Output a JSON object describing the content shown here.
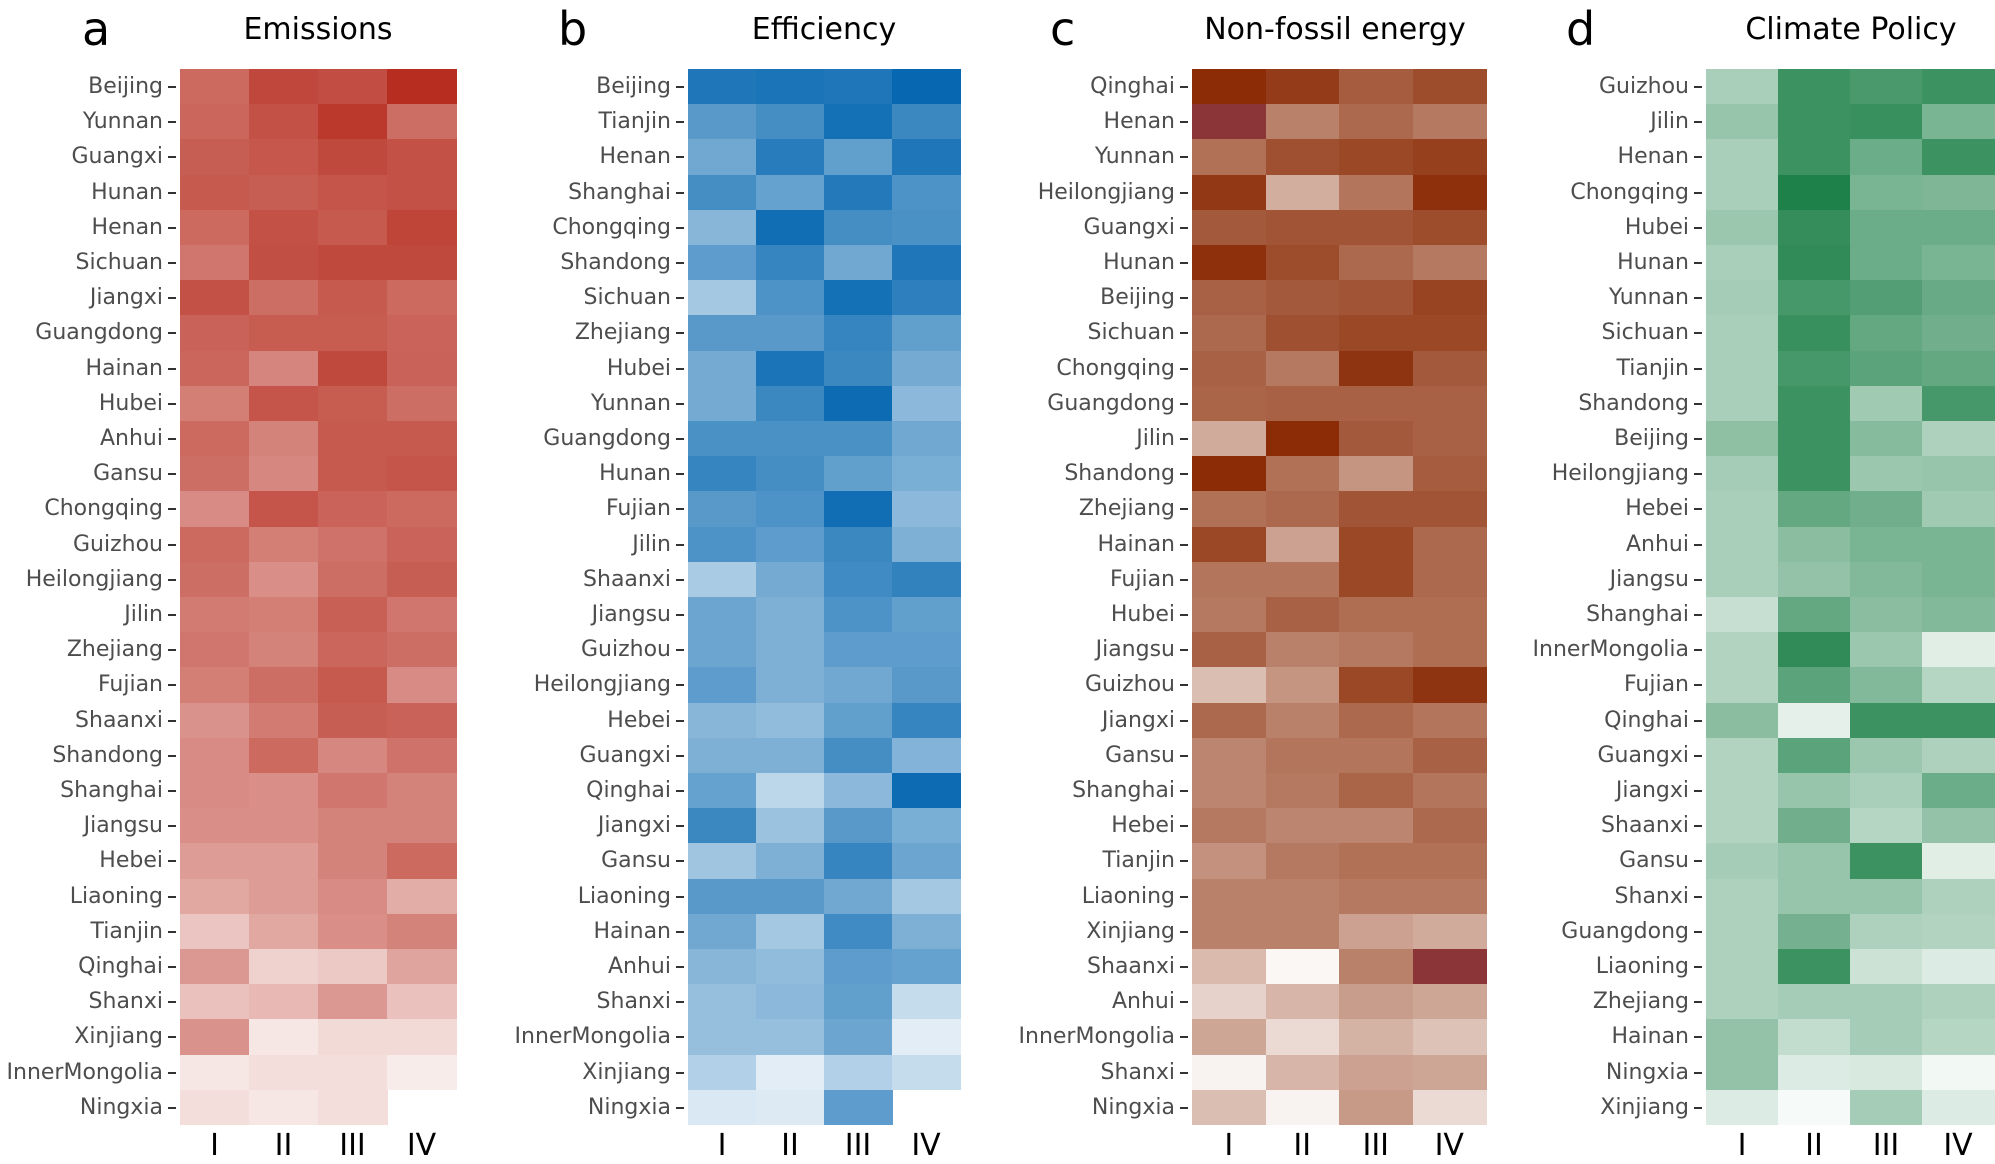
{
  "chart_data": [
    {
      "type": "heatmap",
      "letter": "a",
      "title": "Emissions",
      "xlabels": [
        "I",
        "II",
        "III",
        "IV"
      ],
      "color_low": "#ffffff",
      "color_high": "#b5281a",
      "rows": [
        "Beijing",
        "Yunnan",
        "Guangxi",
        "Hunan",
        "Henan",
        "Sichuan",
        "Jiangxi",
        "Guangdong",
        "Hainan",
        "Hubei",
        "Anhui",
        "Gansu",
        "Chongqing",
        "Guizhou",
        "Heilongjiang",
        "Jilin",
        "Zhejiang",
        "Fujian",
        "Shaanxi",
        "Shandong",
        "Shanghai",
        "Jiangsu",
        "Hebei",
        "Liaoning",
        "Tianjin",
        "Qinghai",
        "Shanxi",
        "Xinjiang",
        "InnerMongolia",
        "Ningxia"
      ],
      "values": [
        [
          0.68,
          0.85,
          0.82,
          0.97
        ],
        [
          0.7,
          0.8,
          0.92,
          0.66
        ],
        [
          0.74,
          0.77,
          0.84,
          0.8
        ],
        [
          0.76,
          0.74,
          0.78,
          0.8
        ],
        [
          0.68,
          0.8,
          0.76,
          0.86
        ],
        [
          0.62,
          0.81,
          0.84,
          0.84
        ],
        [
          0.8,
          0.66,
          0.76,
          0.68
        ],
        [
          0.72,
          0.75,
          0.75,
          0.71
        ],
        [
          0.7,
          0.55,
          0.84,
          0.72
        ],
        [
          0.58,
          0.78,
          0.75,
          0.66
        ],
        [
          0.68,
          0.56,
          0.76,
          0.76
        ],
        [
          0.66,
          0.54,
          0.76,
          0.78
        ],
        [
          0.52,
          0.78,
          0.71,
          0.68
        ],
        [
          0.68,
          0.58,
          0.64,
          0.71
        ],
        [
          0.66,
          0.5,
          0.66,
          0.74
        ],
        [
          0.6,
          0.58,
          0.73,
          0.62
        ],
        [
          0.62,
          0.56,
          0.7,
          0.66
        ],
        [
          0.58,
          0.66,
          0.76,
          0.52
        ],
        [
          0.48,
          0.6,
          0.74,
          0.72
        ],
        [
          0.52,
          0.68,
          0.54,
          0.64
        ],
        [
          0.52,
          0.5,
          0.62,
          0.56
        ],
        [
          0.5,
          0.5,
          0.56,
          0.56
        ],
        [
          0.44,
          0.44,
          0.56,
          0.68
        ],
        [
          0.38,
          0.44,
          0.52,
          0.36
        ],
        [
          0.24,
          0.38,
          0.5,
          0.56
        ],
        [
          0.46,
          0.18,
          0.22,
          0.4
        ],
        [
          0.26,
          0.3,
          0.46,
          0.26
        ],
        [
          0.48,
          0.08,
          0.14,
          0.14
        ],
        [
          0.08,
          0.12,
          0.12,
          0.05
        ],
        [
          0.12,
          0.08,
          0.12,
          null
        ]
      ]
    },
    {
      "type": "heatmap",
      "letter": "b",
      "title": "Efficiency",
      "xlabels": [
        "I",
        "II",
        "III",
        "IV"
      ],
      "color_low": "#ffffff",
      "color_high": "#0768b1",
      "rows": [
        "Beijing",
        "Tianjin",
        "Henan",
        "Shanghai",
        "Chongqing",
        "Shandong",
        "Sichuan",
        "Zhejiang",
        "Hubei",
        "Yunnan",
        "Guangdong",
        "Hunan",
        "Fujian",
        "Jilin",
        "Shaanxi",
        "Jiangsu",
        "Guizhou",
        "Heilongjiang",
        "Hebei",
        "Guangxi",
        "Qinghai",
        "Jiangxi",
        "Gansu",
        "Liaoning",
        "Hainan",
        "Anhui",
        "Shanxi",
        "InnerMongolia",
        "Xinjiang",
        "Ningxia"
      ],
      "values": [
        [
          0.9,
          0.92,
          0.9,
          1.0
        ],
        [
          0.66,
          0.74,
          0.94,
          0.78
        ],
        [
          0.56,
          0.86,
          0.62,
          0.9
        ],
        [
          0.74,
          0.6,
          0.88,
          0.7
        ],
        [
          0.46,
          0.96,
          0.74,
          0.72
        ],
        [
          0.64,
          0.8,
          0.56,
          0.9
        ],
        [
          0.34,
          0.7,
          0.94,
          0.84
        ],
        [
          0.66,
          0.66,
          0.8,
          0.62
        ],
        [
          0.54,
          0.92,
          0.78,
          0.54
        ],
        [
          0.54,
          0.78,
          0.98,
          0.44
        ],
        [
          0.72,
          0.72,
          0.72,
          0.56
        ],
        [
          0.8,
          0.74,
          0.62,
          0.52
        ],
        [
          0.66,
          0.7,
          0.96,
          0.44
        ],
        [
          0.7,
          0.64,
          0.78,
          0.5
        ],
        [
          0.32,
          0.54,
          0.76,
          0.82
        ],
        [
          0.58,
          0.5,
          0.7,
          0.62
        ],
        [
          0.58,
          0.5,
          0.64,
          0.64
        ],
        [
          0.64,
          0.5,
          0.56,
          0.66
        ],
        [
          0.46,
          0.42,
          0.62,
          0.8
        ],
        [
          0.5,
          0.5,
          0.74,
          0.48
        ],
        [
          0.6,
          0.24,
          0.44,
          0.98
        ],
        [
          0.78,
          0.38,
          0.66,
          0.52
        ],
        [
          0.36,
          0.5,
          0.8,
          0.58
        ],
        [
          0.66,
          0.66,
          0.56,
          0.34
        ],
        [
          0.56,
          0.34,
          0.76,
          0.5
        ],
        [
          0.46,
          0.42,
          0.64,
          0.6
        ],
        [
          0.4,
          0.44,
          0.62,
          0.2
        ],
        [
          0.4,
          0.4,
          0.58,
          0.08
        ],
        [
          0.28,
          0.08,
          0.28,
          0.2
        ],
        [
          0.12,
          0.1,
          0.64,
          null
        ]
      ]
    },
    {
      "type": "heatmap",
      "letter": "c",
      "title": "Non-fossil energy",
      "xlabels": [
        "I",
        "II",
        "III",
        "IV"
      ],
      "color_low": "#ffffff",
      "color_high": "#8b2c06",
      "color_extreme": "#8b3538",
      "rows": [
        "Qinghai",
        "Henan",
        "Yunnan",
        "Heilongjiang",
        "Guangxi",
        "Hunan",
        "Beijing",
        "Sichuan",
        "Chongqing",
        "Guangdong",
        "Jilin",
        "Shandong",
        "Zhejiang",
        "Hainan",
        "Fujian",
        "Hubei",
        "Jiangsu",
        "Guizhou",
        "Jiangxi",
        "Gansu",
        "Shanghai",
        "Hebei",
        "Tianjin",
        "Liaoning",
        "Xinjiang",
        "Shaanxi",
        "Anhui",
        "InnerMongolia",
        "Shanxi",
        "Ningxia"
      ],
      "values": [
        [
          1.0,
          0.92,
          0.76,
          0.84
        ],
        [
          "extreme",
          0.58,
          0.7,
          0.62
        ],
        [
          0.66,
          0.82,
          0.86,
          0.9
        ],
        [
          0.94,
          0.36,
          0.64,
          0.98
        ],
        [
          0.78,
          0.8,
          0.8,
          0.84
        ],
        [
          0.98,
          0.84,
          0.7,
          0.62
        ],
        [
          0.74,
          0.78,
          0.8,
          0.88
        ],
        [
          0.7,
          0.82,
          0.86,
          0.86
        ],
        [
          0.74,
          0.62,
          0.96,
          0.78
        ],
        [
          0.72,
          0.74,
          0.74,
          0.74
        ],
        [
          0.38,
          1.0,
          0.78,
          0.74
        ],
        [
          1.0,
          0.66,
          0.48,
          0.76
        ],
        [
          0.66,
          0.7,
          0.8,
          0.8
        ],
        [
          0.86,
          0.42,
          0.86,
          0.7
        ],
        [
          0.64,
          0.64,
          0.86,
          0.7
        ],
        [
          0.62,
          0.74,
          0.68,
          0.68
        ],
        [
          0.74,
          0.58,
          0.62,
          0.68
        ],
        [
          0.28,
          0.48,
          0.86,
          0.96
        ],
        [
          0.7,
          0.58,
          0.7,
          0.64
        ],
        [
          0.56,
          0.64,
          0.64,
          0.74
        ],
        [
          0.56,
          0.62,
          0.72,
          0.64
        ],
        [
          0.62,
          0.56,
          0.56,
          0.7
        ],
        [
          0.5,
          0.62,
          0.66,
          0.66
        ],
        [
          0.58,
          0.58,
          0.62,
          0.62
        ],
        [
          0.58,
          0.58,
          0.42,
          0.38
        ],
        [
          0.3,
          0.0,
          0.58,
          "extreme"
        ],
        [
          0.18,
          0.32,
          0.44,
          0.4
        ],
        [
          0.4,
          0.14,
          0.34,
          0.26
        ],
        [
          0.02,
          0.32,
          0.42,
          0.4
        ],
        [
          0.28,
          0.02,
          0.46,
          0.14
        ]
      ]
    },
    {
      "type": "heatmap",
      "letter": "d",
      "title": "Climate Policy",
      "xlabels": [
        "I",
        "II",
        "III",
        "IV"
      ],
      "color_low": "#ffffff",
      "color_high": "#1f814a",
      "rows": [
        "Guizhou",
        "Jilin",
        "Henan",
        "Chongqing",
        "Hubei",
        "Hunan",
        "Yunnan",
        "Sichuan",
        "Tianjin",
        "Shandong",
        "Beijing",
        "Heilongjiang",
        "Hebei",
        "Anhui",
        "Jiangsu",
        "Shanghai",
        "InnerMongolia",
        "Fujian",
        "Qinghai",
        "Guangxi",
        "Jiangxi",
        "Shaanxi",
        "Gansu",
        "Shanxi",
        "Guangdong",
        "Liaoning",
        "Zhejiang",
        "Hainan",
        "Ningxia",
        "Xinjiang"
      ],
      "values": [
        [
          0.36,
          0.86,
          0.8,
          0.86
        ],
        [
          0.44,
          0.86,
          0.88,
          0.58
        ],
        [
          0.36,
          0.86,
          0.64,
          0.86
        ],
        [
          0.36,
          1.0,
          0.58,
          0.56
        ],
        [
          0.42,
          0.9,
          0.64,
          0.64
        ],
        [
          0.36,
          0.92,
          0.64,
          0.58
        ],
        [
          0.38,
          0.82,
          0.76,
          0.66
        ],
        [
          0.36,
          0.88,
          0.68,
          0.62
        ],
        [
          0.36,
          0.82,
          0.72,
          0.68
        ],
        [
          0.36,
          0.86,
          0.4,
          0.82
        ],
        [
          0.48,
          0.86,
          0.52,
          0.34
        ],
        [
          0.38,
          0.86,
          0.42,
          0.44
        ],
        [
          0.36,
          0.68,
          0.62,
          0.4
        ],
        [
          0.36,
          0.5,
          0.58,
          0.58
        ],
        [
          0.36,
          0.46,
          0.54,
          0.58
        ],
        [
          0.22,
          0.68,
          0.5,
          0.54
        ],
        [
          0.32,
          0.92,
          0.42,
          0.1
        ],
        [
          0.32,
          0.72,
          0.54,
          0.3
        ],
        [
          0.5,
          0.08,
          0.86,
          0.86
        ],
        [
          0.32,
          0.72,
          0.42,
          0.34
        ],
        [
          0.32,
          0.44,
          0.36,
          0.64
        ],
        [
          0.32,
          0.62,
          0.3,
          0.46
        ],
        [
          0.38,
          0.44,
          0.86,
          0.1
        ],
        [
          0.34,
          0.44,
          0.44,
          0.34
        ],
        [
          0.34,
          0.6,
          0.34,
          0.32
        ],
        [
          0.34,
          0.86,
          0.2,
          0.12
        ],
        [
          0.34,
          0.38,
          0.38,
          0.34
        ],
        [
          0.46,
          0.24,
          0.38,
          0.3
        ],
        [
          0.46,
          0.12,
          0.14,
          0.02
        ],
        [
          0.12,
          0.0,
          0.38,
          0.12
        ]
      ]
    }
  ]
}
